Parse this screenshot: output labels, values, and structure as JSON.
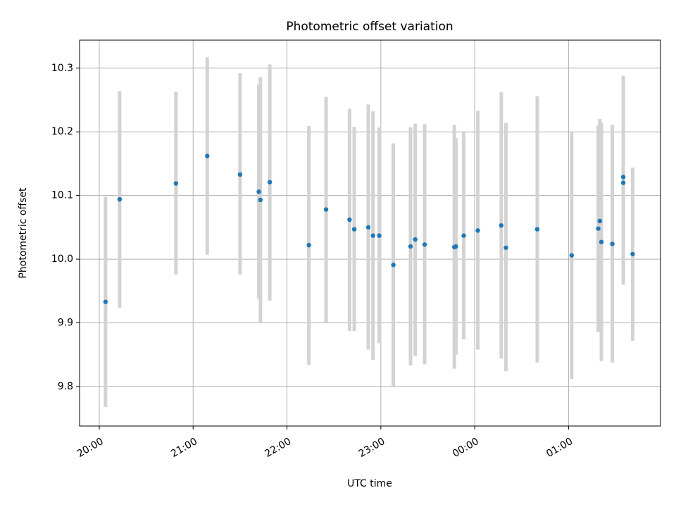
{
  "chart_data": {
    "type": "scatter",
    "title": "Photometric offset variation",
    "xlabel": "UTC time",
    "ylabel": "Photometric offset",
    "x_ticks": [
      "20:00",
      "21:00",
      "22:00",
      "23:00",
      "00:00",
      "01:00"
    ],
    "x_ticks_hours": [
      0,
      1,
      2,
      3,
      4,
      5
    ],
    "x_axis_origin_label": "20:00 UTC",
    "xlim_hours": [
      -0.21,
      5.98
    ],
    "y_ticks": [
      "9.8",
      "9.9",
      "10.0",
      "10.1",
      "10.2",
      "10.3"
    ],
    "ylim": [
      9.738,
      10.344
    ],
    "grid": true,
    "marker_color": "#1f77b4",
    "errorbar_color": "#d3d3d3",
    "points": [
      {
        "t": "20:04",
        "y": 9.933,
        "lo": 9.768,
        "hi": 10.098
      },
      {
        "t": "20:13",
        "y": 10.094,
        "lo": 9.924,
        "hi": 10.264
      },
      {
        "t": "20:49",
        "y": 10.119,
        "lo": 9.976,
        "hi": 10.263
      },
      {
        "t": "21:09",
        "y": 10.162,
        "lo": 10.007,
        "hi": 10.317
      },
      {
        "t": "21:30",
        "y": 10.133,
        "lo": 9.976,
        "hi": 10.292
      },
      {
        "t": "21:42",
        "y": 10.106,
        "lo": 9.938,
        "hi": 10.274
      },
      {
        "t": "21:43",
        "y": 10.093,
        "lo": 9.9,
        "hi": 10.286
      },
      {
        "t": "21:49",
        "y": 10.121,
        "lo": 9.935,
        "hi": 10.306
      },
      {
        "t": "22:14",
        "y": 10.022,
        "lo": 9.834,
        "hi": 10.209
      },
      {
        "t": "22:25",
        "y": 10.078,
        "lo": 9.9,
        "hi": 10.255
      },
      {
        "t": "22:40",
        "y": 10.062,
        "lo": 9.887,
        "hi": 10.236
      },
      {
        "t": "22:43",
        "y": 10.047,
        "lo": 9.887,
        "hi": 10.208
      },
      {
        "t": "22:52",
        "y": 10.05,
        "lo": 9.858,
        "hi": 10.243
      },
      {
        "t": "22:55",
        "y": 10.037,
        "lo": 9.842,
        "hi": 10.232
      },
      {
        "t": "22:59",
        "y": 10.037,
        "lo": 9.868,
        "hi": 10.207
      },
      {
        "t": "23:08",
        "y": 9.991,
        "lo": 9.8,
        "hi": 10.182
      },
      {
        "t": "23:19",
        "y": 10.02,
        "lo": 9.833,
        "hi": 10.207
      },
      {
        "t": "23:22",
        "y": 10.031,
        "lo": 9.848,
        "hi": 10.213
      },
      {
        "t": "23:28",
        "y": 10.023,
        "lo": 9.835,
        "hi": 10.212
      },
      {
        "t": "23:47",
        "y": 10.019,
        "lo": 9.828,
        "hi": 10.211
      },
      {
        "t": "23:48",
        "y": 10.02,
        "lo": 9.85,
        "hi": 10.19
      },
      {
        "t": "23:53",
        "y": 10.037,
        "lo": 9.874,
        "hi": 10.2
      },
      {
        "t": "00:02",
        "y": 10.045,
        "lo": 9.858,
        "hi": 10.233
      },
      {
        "t": "00:17",
        "y": 10.053,
        "lo": 9.844,
        "hi": 10.262
      },
      {
        "t": "00:20",
        "y": 10.018,
        "lo": 9.824,
        "hi": 10.214
      },
      {
        "t": "00:40",
        "y": 10.047,
        "lo": 9.838,
        "hi": 10.256
      },
      {
        "t": "01:02",
        "y": 10.006,
        "lo": 9.812,
        "hi": 10.2
      },
      {
        "t": "01:19",
        "y": 10.048,
        "lo": 9.886,
        "hi": 10.21
      },
      {
        "t": "01:20",
        "y": 10.06,
        "lo": 9.9,
        "hi": 10.22
      },
      {
        "t": "01:21",
        "y": 10.027,
        "lo": 9.84,
        "hi": 10.214
      },
      {
        "t": "01:28",
        "y": 10.024,
        "lo": 9.838,
        "hi": 10.211
      },
      {
        "t": "01:35",
        "y": 10.12,
        "lo": 9.96,
        "hi": 10.28
      },
      {
        "t": "01:35",
        "y": 10.129,
        "lo": 9.97,
        "hi": 10.288
      },
      {
        "t": "01:41",
        "y": 10.008,
        "lo": 9.872,
        "hi": 10.144
      }
    ]
  }
}
